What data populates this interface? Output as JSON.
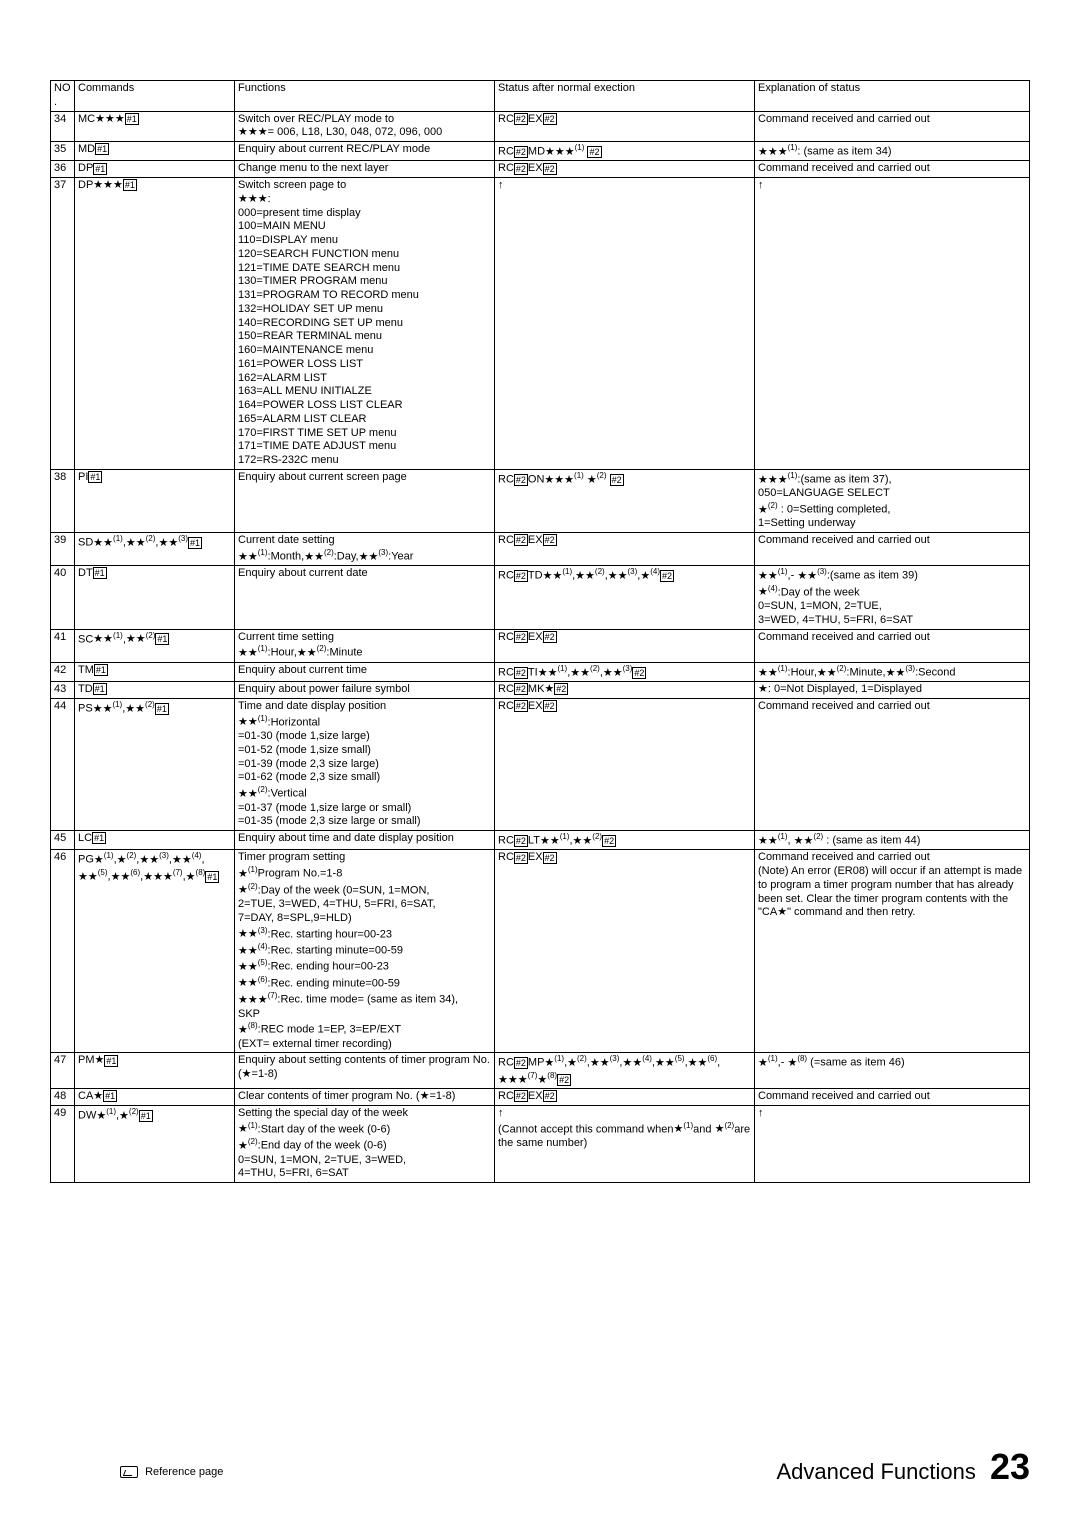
{
  "headers": {
    "no": "NO.",
    "commands": "Commands",
    "functions": "Functions",
    "status": "Status after normal exection",
    "explanation": "Explanation of status"
  },
  "rows": [
    {
      "no": "34",
      "cmd": "MC★★★[#1]",
      "fn": "Switch over REC/PLAY mode to\n★★★= 006, L18, L30, 048, 072, 096, 000",
      "st": "RC[#2]EX[#2]",
      "ex": "Command received and carried out"
    },
    {
      "no": "35",
      "cmd": "MD[#1]",
      "fn": "Enquiry about current REC/PLAY mode",
      "st": "RC[#2]MD★★★(1) [#2]",
      "ex": "★★★(1): (same as item 34)"
    },
    {
      "no": "36",
      "cmd": "DP[#1]",
      "fn": "Change menu to the next layer",
      "st": "RC[#2]EX[#2]",
      "ex": "Command received and carried out"
    },
    {
      "no": "37",
      "cmd": "DP★★★[#1]",
      "fn": "Switch screen page to\n★★★:\n000=present time display\n100=MAIN MENU\n110=DISPLAY menu\n120=SEARCH FUNCTION menu\n121=TIME DATE SEARCH menu\n130=TIMER PROGRAM menu\n131=PROGRAM TO RECORD menu\n132=HOLIDAY SET UP menu\n140=RECORDING SET UP menu\n150=REAR TERMINAL menu\n160=MAINTENANCE menu\n161=POWER LOSS LIST\n162=ALARM LIST\n163=ALL MENU INITIALZE\n164=POWER LOSS LIST CLEAR\n165=ALARM LIST CLEAR\n170=FIRST TIME SET UP menu\n171=TIME DATE ADJUST menu\n172=RS-232C menu",
      "st": "↑",
      "ex": "↑"
    },
    {
      "no": "38",
      "cmd": "PI[#1]",
      "fn": "Enquiry about current screen page",
      "st": "RC[#2]ON★★★(1) ★(2) [#2]",
      "ex": "★★★(1):(same as item 37),\n050=LANGUAGE SELECT\n★(2)     : 0=Setting completed,\n              1=Setting underway"
    },
    {
      "no": "39",
      "cmd": "SD★★(1),★★(2),★★(3)[#1]",
      "fn": "Current date setting\n★★(1):Month,★★(2):Day,★★(3):Year",
      "st": "RC[#2]EX[#2]",
      "ex": "Command received and carried out"
    },
    {
      "no": "40",
      "cmd": "DT[#1]",
      "fn": "Enquiry about current date",
      "st": "RC[#2]TD★★(1),★★(2),★★(3),★(4)[#2]",
      "ex": "★★(1),- ★★(3):(same as item 39)\n★(4):Day of the week\n0=SUN, 1=MON, 2=TUE,\n3=WED, 4=THU, 5=FRI, 6=SAT"
    },
    {
      "no": "41",
      "cmd": "SC★★(1),★★(2)[#1]",
      "fn": "Current time setting\n★★(1):Hour,★★(2):Minute",
      "st": "RC[#2]EX[#2]",
      "ex": "Command received and carried out"
    },
    {
      "no": "42",
      "cmd": "TM[#1]",
      "fn": "Enquiry about current time",
      "st": "RC[#2]TI★★(1),★★(2),★★(3)[#2]",
      "ex": "★★(1):Hour,★★(2):Minute,★★(3):Second"
    },
    {
      "no": "43",
      "cmd": "TD[#1]",
      "fn": "Enquiry about power failure symbol",
      "st": "RC[#2]MK★[#2]",
      "ex": "★: 0=Not Displayed, 1=Displayed"
    },
    {
      "no": "44",
      "cmd": "PS★★(1),★★(2)[#1]",
      "fn": "Time and date display position\n★★(1):Horizontal\n=01-30 (mode 1,size large)\n=01-52 (mode 1,size small)\n=01-39 (mode 2,3 size large)\n=01-62 (mode 2,3 size small)\n★★(2):Vertical\n=01-37 (mode 1,size large or small)\n=01-35 (mode 2,3 size large or small)",
      "st": "RC[#2]EX[#2]",
      "ex": "Command received and carried out"
    },
    {
      "no": "45",
      "cmd": "LC[#1]",
      "fn": "Enquiry about time and date display position",
      "st": "RC[#2]LT★★(1),★★(2)[#2]",
      "ex": "★★(1), ★★(2) : (same as item 44)"
    },
    {
      "no": "46",
      "cmd": "PG★(1),★(2),★★(3),★★(4),\n★★(5),★★(6),★★★(7),★(8)[#1]",
      "fn": "Timer program setting\n★(1)Program No.=1-8\n★(2):Day of the week (0=SUN, 1=MON,\n2=TUE, 3=WED, 4=THU, 5=FRI, 6=SAT,\n7=DAY, 8=SPL,9=HLD)\n★★(3):Rec. starting hour=00-23\n★★(4):Rec. starting minute=00-59\n★★(5):Rec. ending hour=00-23\n★★(6):Rec. ending minute=00-59\n★★★(7):Rec. time mode= (same as item 34),\nSKP\n★(8):REC mode 1=EP, 3=EP/EXT\n(EXT= external timer recording)",
      "st": "RC[#2]EX[#2]",
      "ex": "Command received and carried out\n(Note) An error (ER08) will occur if an attempt is made to program a timer program number that has already been set. Clear the timer program contents with the \"CA★\" command and then retry."
    },
    {
      "no": "47",
      "cmd": "PM★[#1]",
      "fn": "Enquiry about setting contents of timer program No. (★=1-8)",
      "st": "RC[#2]MP★(1),★(2),★★(3),★★(4),★★(5),★★(6),\n★★★(7)★(8)[#2]",
      "ex": "★(1),- ★(8) (=same as item 46)"
    },
    {
      "no": "48",
      "cmd": "CA★[#1]",
      "fn": "Clear contents of timer program No. (★=1-8)",
      "st": "RC[#2]EX[#2]",
      "ex": "Command received and carried out"
    },
    {
      "no": "49",
      "cmd": "DW★(1),★(2)[#1]",
      "fn": "Setting the special day of the week\n★(1):Start day of the week (0-6)\n★(2):End day of the week (0-6)\n0=SUN, 1=MON, 2=TUE, 3=WED,\n4=THU, 5=FRI, 6=SAT",
      "st": "↑\n(Cannot accept this command when★(1)and ★(2)are the same number)",
      "ex": "↑"
    }
  ],
  "footer": {
    "section": "Advanced Functions",
    "page": "23",
    "ref": "Reference page"
  }
}
